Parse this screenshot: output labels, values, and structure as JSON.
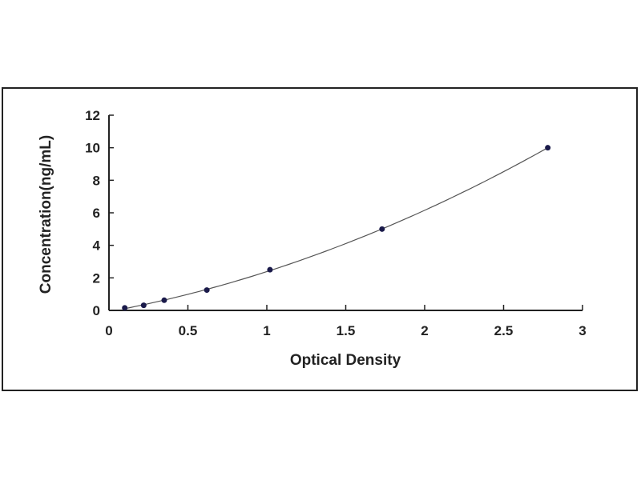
{
  "chart_data": {
    "type": "scatter",
    "title": "",
    "xlabel": "Optical Density",
    "ylabel": "Concentration(ng/mL)",
    "xlim": [
      0,
      3
    ],
    "ylim": [
      0,
      12
    ],
    "xticks": [
      "0",
      "0.5",
      "1",
      "1.5",
      "2",
      "2.5",
      "3"
    ],
    "yticks": [
      "0",
      "2",
      "4",
      "6",
      "8",
      "10",
      "12"
    ],
    "grid": false,
    "fit_line": true,
    "x": [
      0.1,
      0.22,
      0.35,
      0.62,
      1.02,
      1.73,
      2.78
    ],
    "y": [
      0.156,
      0.313,
      0.625,
      1.25,
      2.5,
      5,
      10
    ],
    "colors": {
      "points": "#1a1a4a",
      "line": "#555555",
      "axis": "#222222"
    }
  }
}
